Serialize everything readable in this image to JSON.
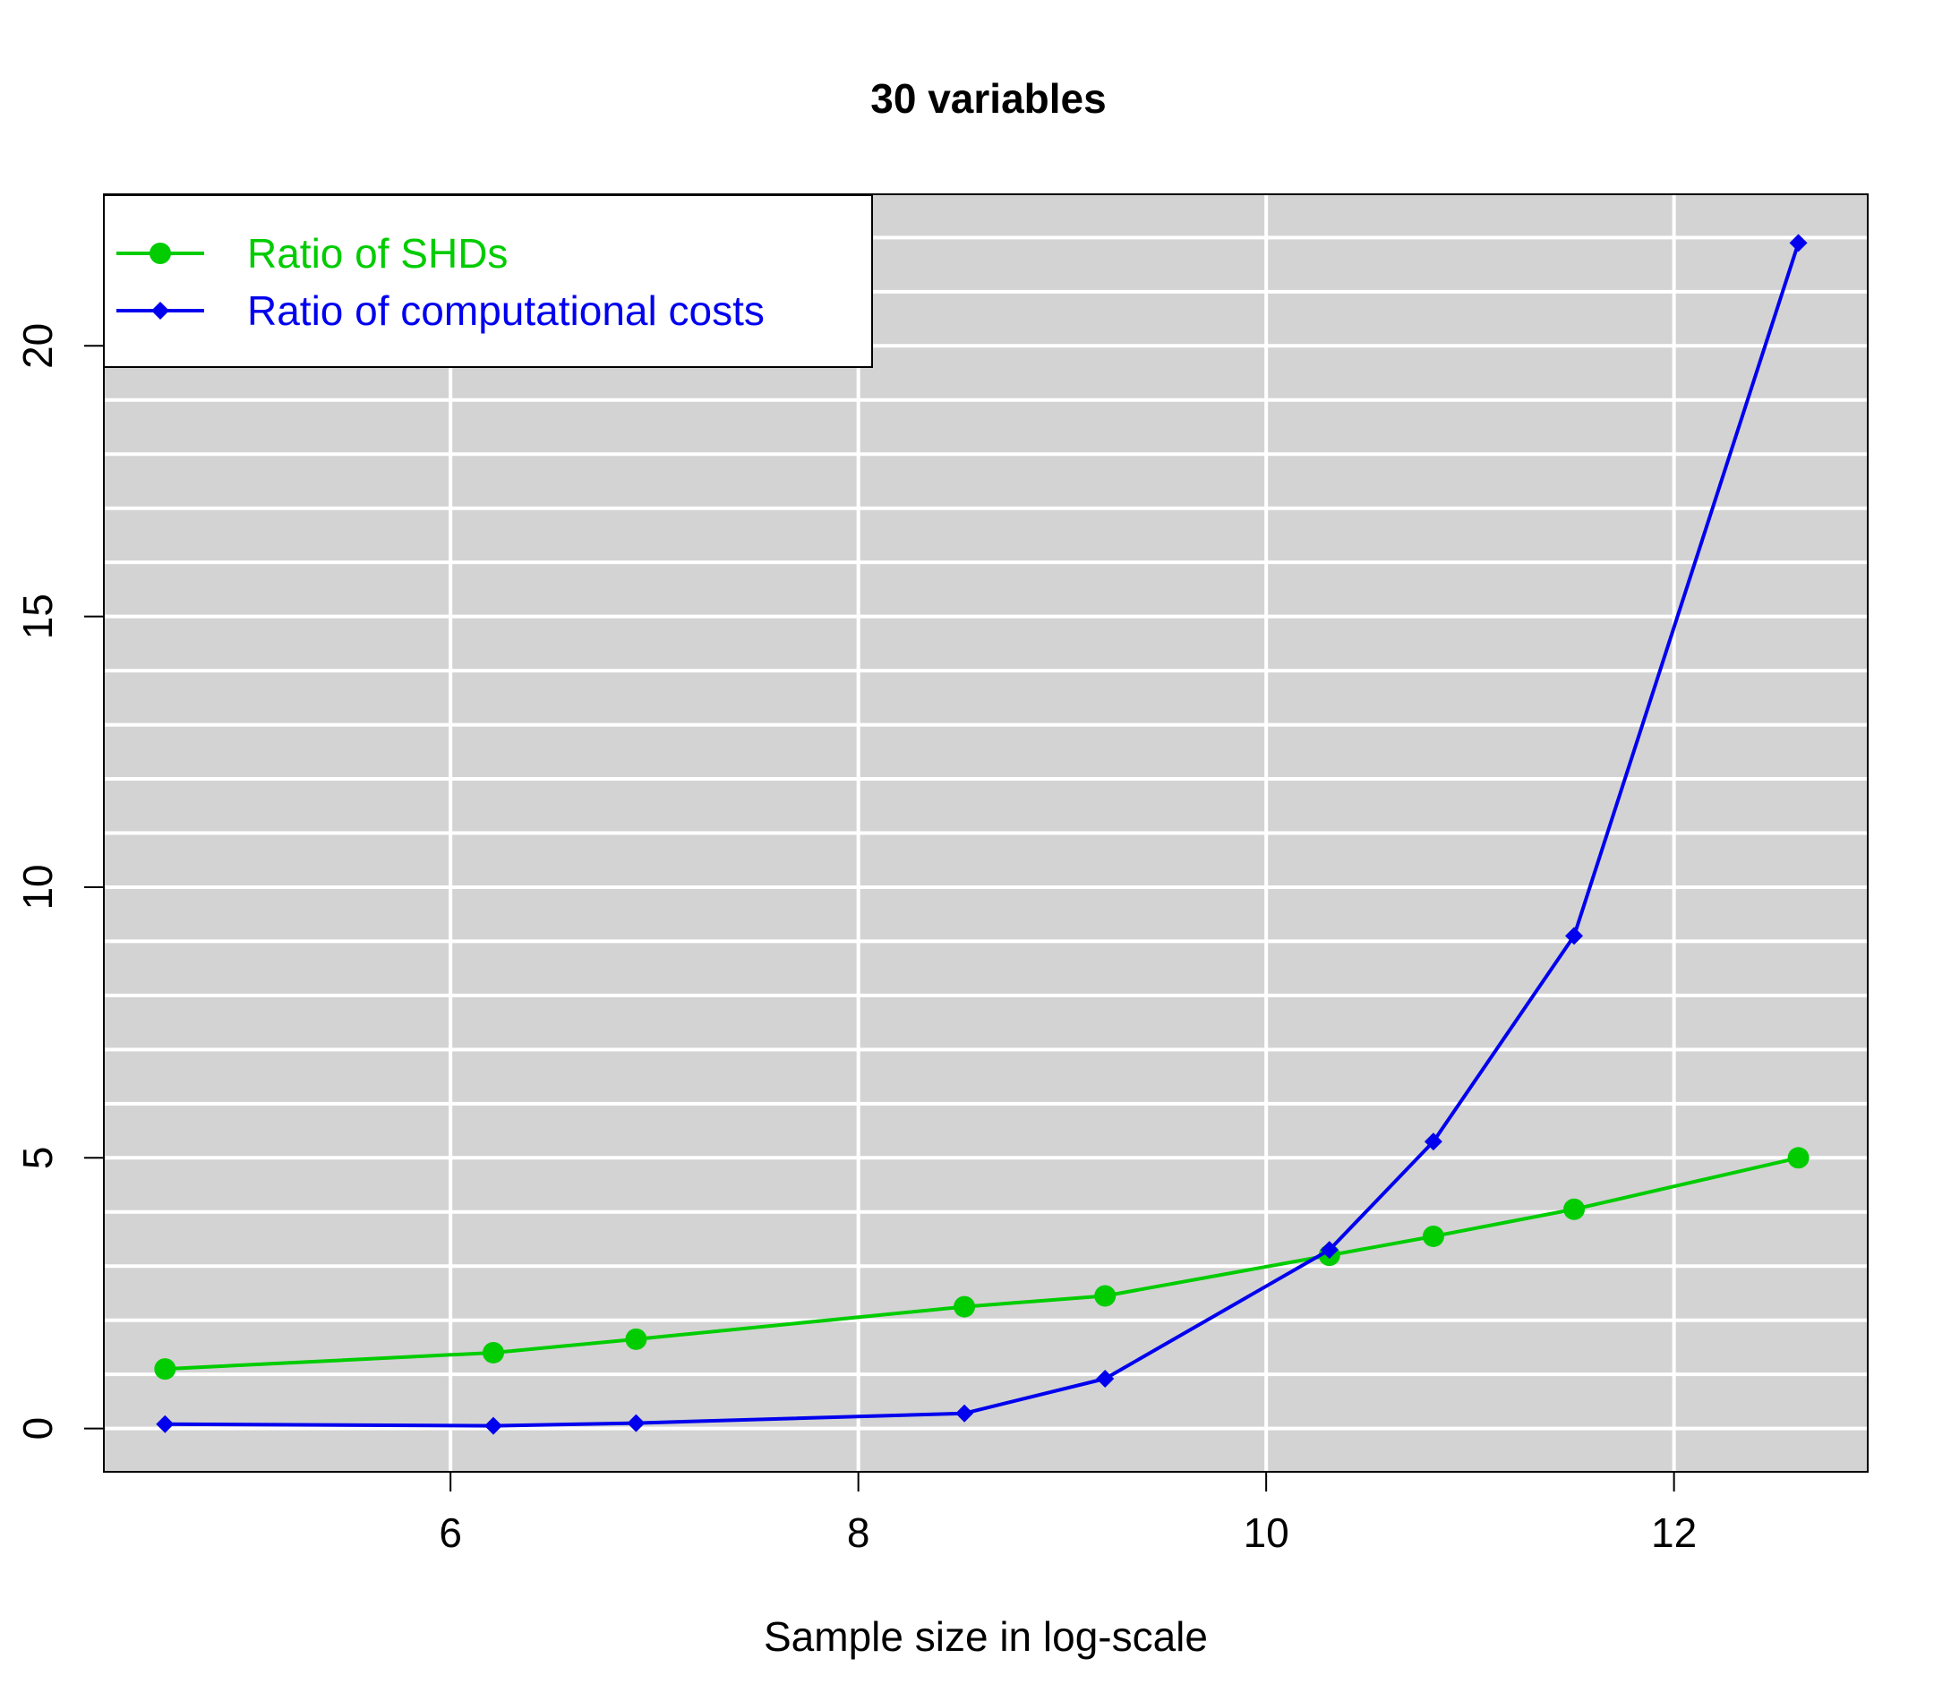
{
  "chart_data": {
    "type": "line",
    "title": "30 variables",
    "xlabel": "Sample size in log-scale",
    "ylabel": "",
    "xlim": [
      4.3,
      12.95
    ],
    "ylim": [
      -0.8,
      22.8
    ],
    "xticks": [
      6,
      8,
      10,
      12
    ],
    "yticks": [
      0,
      5,
      10,
      15,
      20
    ],
    "grid": true,
    "grid_y_step": 1,
    "legend_position": "top-left",
    "background": "#d3d3d3",
    "series": [
      {
        "name": "Ratio of SHDs",
        "color": "#00cc00",
        "marker": "circle",
        "x": [
          4.6,
          6.21,
          6.91,
          8.52,
          9.21,
          10.31,
          10.82,
          11.51,
          12.61
        ],
        "y": [
          1.1,
          1.4,
          1.65,
          2.25,
          2.45,
          3.2,
          3.55,
          4.05,
          5.0
        ]
      },
      {
        "name": "Ratio of computational costs",
        "color": "#0000ee",
        "marker": "diamond",
        "x": [
          4.6,
          6.21,
          6.91,
          8.52,
          9.21,
          10.31,
          10.82,
          11.51,
          12.61
        ],
        "y": [
          0.08,
          0.05,
          0.1,
          0.28,
          0.92,
          3.3,
          5.3,
          9.1,
          21.9
        ]
      }
    ]
  }
}
